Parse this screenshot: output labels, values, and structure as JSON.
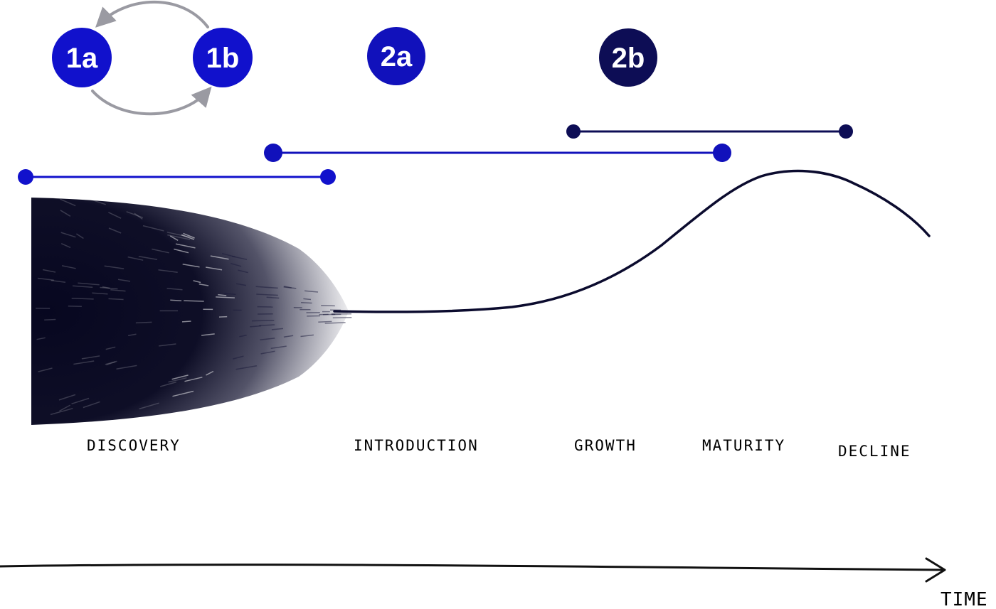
{
  "badges": [
    {
      "id": "1a",
      "label": "1a",
      "color": "#1111cc"
    },
    {
      "id": "1b",
      "label": "1b",
      "color": "#1111cc"
    },
    {
      "id": "2a",
      "label": "2a",
      "color": "#1111bb"
    },
    {
      "id": "2b",
      "label": "2b",
      "color": "#0d0d55"
    }
  ],
  "cycle_arrow_color": "#9a9aa2",
  "range_bar_colors": {
    "phase_1": "#1111cc",
    "phase_2a": "#1111bb",
    "phase_2b": "#0d0d55"
  },
  "stages": [
    "DISCOVERY",
    "INTRODUCTION",
    "GROWTH",
    "MATURITY",
    "DECLINE"
  ],
  "axis": {
    "label": "TIME"
  },
  "colors": {
    "curve": "#0b0b2e",
    "cone": "#070720",
    "axis": "#111111"
  }
}
